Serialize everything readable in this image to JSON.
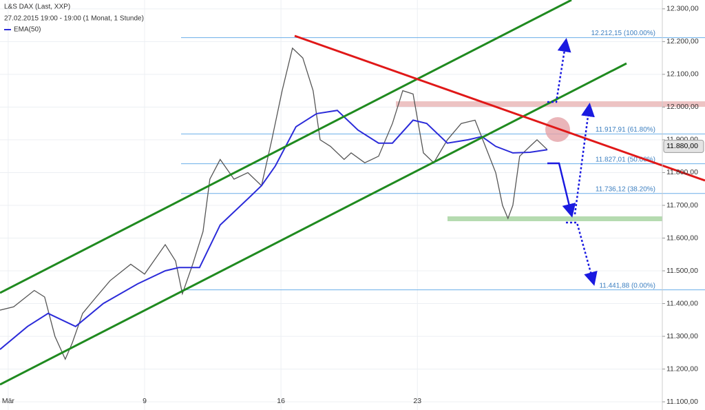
{
  "chart_data": {
    "type": "line",
    "header": {
      "instrument": "L&S DAX (Last, XXP)",
      "period": "27.02.2015 19:00 - 19:00 (1 Monat, 1 Stunde)"
    },
    "x": [
      1.58,
      2.28,
      3.34,
      3.87,
      4.4,
      4.93,
      5.29,
      5.82,
      6.52,
      7.23,
      8.29,
      9.0,
      10.06,
      10.59,
      10.94,
      11.47,
      12.0,
      12.35,
      12.88,
      13.59,
      14.3,
      15.0,
      15.53,
      16.06,
      16.59,
      17.12,
      17.65,
      18.01,
      18.54,
      19.24,
      19.6,
      20.3,
      21.01,
      21.72,
      22.25,
      22.78,
      23.31,
      23.84,
      24.54,
      25.25,
      25.96,
      26.49,
      27.02,
      27.37,
      27.65,
      27.9,
      28.25,
      28.78,
      29.14,
      29.67
    ],
    "series": [
      {
        "name": "L&S DAX",
        "color": "#555555",
        "values": [
          11380,
          11390,
          11440,
          11420,
          11300,
          11230,
          11280,
          11370,
          11420,
          11470,
          11520,
          11490,
          11580,
          11530,
          11430,
          11520,
          11620,
          11780,
          11840,
          11780,
          11800,
          11760,
          11900,
          12050,
          12180,
          12150,
          12050,
          11900,
          11880,
          11840,
          11860,
          11830,
          11850,
          11950,
          12050,
          12040,
          11860,
          11830,
          11900,
          11950,
          11960,
          11880,
          11800,
          11700,
          11660,
          11700,
          11850,
          11880,
          11900,
          11870
        ]
      },
      {
        "name": "EMA(50)",
        "color": "#2b2bd9",
        "x": [
          1.58,
          2.99,
          4.05,
          5.46,
          6.88,
          8.64,
          10.06,
          10.76,
          11.82,
          12.88,
          14.3,
          15.0,
          15.71,
          16.77,
          17.83,
          18.89,
          19.95,
          21.01,
          21.72,
          22.78,
          23.48,
          24.54,
          25.6,
          26.31,
          27.02,
          27.9,
          28.78,
          29.67
        ],
        "values": [
          11260,
          11330,
          11370,
          11330,
          11400,
          11460,
          11500,
          11510,
          11510,
          11640,
          11720,
          11760,
          11820,
          11940,
          11980,
          11990,
          11930,
          11890,
          11890,
          11960,
          11950,
          11890,
          11900,
          11910,
          11880,
          11860,
          11862,
          11870
        ]
      }
    ],
    "last_price": {
      "value": 11880,
      "label": "11.880,00"
    },
    "fib_levels": [
      {
        "value": 12212.15,
        "label": "12.212,15 (100.00%)"
      },
      {
        "value": 11917.91,
        "label": "11.917,91 (61.80%)"
      },
      {
        "value": 11827.01,
        "label": "11.827,01 (50.00%)"
      },
      {
        "value": 11736.12,
        "label": "11.736,12 (38.20%)"
      },
      {
        "value": 11441.88,
        "label": "11.441,88 (0.00%)"
      }
    ],
    "xlim": [
      1.58,
      35.57
    ],
    "xticks": [
      {
        "value": 2,
        "label": "Mär"
      },
      9,
      16,
      23
    ],
    "ylim": [
      11075,
      12327
    ],
    "yticks": [
      {
        "value": 11100,
        "label": "11.100,00"
      },
      {
        "value": 11200,
        "label": "11.200,00"
      },
      {
        "value": 11300,
        "label": "11.300,00"
      },
      {
        "value": 11400,
        "label": "11.400,00"
      },
      {
        "value": 11500,
        "label": "11.500,00"
      },
      {
        "value": 11600,
        "label": "11.600,00"
      },
      {
        "value": 11700,
        "label": "11.700,00"
      },
      {
        "value": 11800,
        "label": "11.800,00"
      },
      {
        "value": 11900,
        "label": "11.900,00"
      },
      {
        "value": 12000,
        "label": "12.000,00"
      },
      {
        "value": 12100,
        "label": "12.100,00"
      },
      {
        "value": 12200,
        "label": "12.200,00"
      },
      {
        "value": 12300,
        "label": "12.300,00"
      }
    ],
    "grid": true
  }
}
